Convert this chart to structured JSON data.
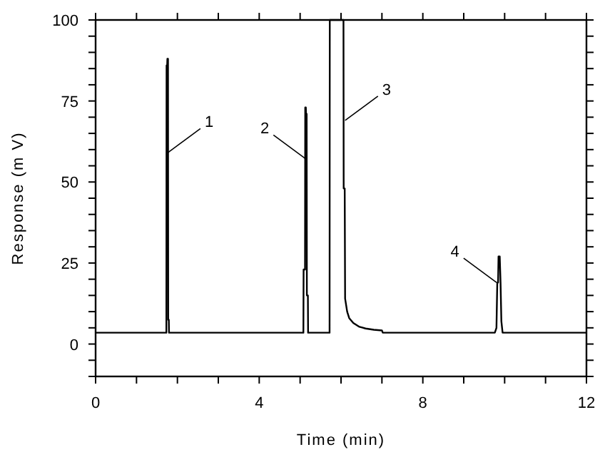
{
  "chart_data": {
    "type": "line",
    "xlabel": "Time (min)",
    "ylabel": "Response (m V)",
    "xlim": [
      0,
      12
    ],
    "ylim": [
      -10,
      100
    ],
    "xticks": [
      0,
      {
        "value": 1,
        "label": null
      },
      {
        "value": 2,
        "label": null
      },
      {
        "value": 3,
        "label": null
      },
      4,
      {
        "value": 5,
        "label": null
      },
      {
        "value": 6,
        "label": null
      },
      {
        "value": 7,
        "label": null
      },
      8,
      {
        "value": 9,
        "label": null
      },
      {
        "value": 10,
        "label": null
      },
      {
        "value": 11,
        "label": null
      },
      12
    ],
    "yticks": [
      {
        "value": -10,
        "label": null
      },
      {
        "value": -5,
        "label": null
      },
      0,
      {
        "value": 5,
        "label": null
      },
      {
        "value": 10,
        "label": null
      },
      {
        "value": 15,
        "label": null
      },
      {
        "value": 20,
        "label": null
      },
      25,
      {
        "value": 30,
        "label": null
      },
      {
        "value": 35,
        "label": null
      },
      {
        "value": 40,
        "label": null
      },
      {
        "value": 45,
        "label": null
      },
      50,
      {
        "value": 55,
        "label": null
      },
      {
        "value": 60,
        "label": null
      },
      {
        "value": 65,
        "label": null
      },
      {
        "value": 70,
        "label": null
      },
      75,
      {
        "value": 80,
        "label": null
      },
      {
        "value": 85,
        "label": null
      },
      {
        "value": 90,
        "label": null
      },
      {
        "value": 95,
        "label": null
      },
      100
    ],
    "grid": false,
    "series": [
      {
        "color": "#000000",
        "x": [
          0,
          1.73,
          1.735,
          1.75,
          1.755,
          1.77,
          1.775,
          1.79,
          1.795,
          5.08,
          5.085,
          5.12,
          5.125,
          5.14,
          5.145,
          5.16,
          5.165,
          5.19,
          5.195,
          5.72,
          5.725,
          6.06,
          6.065,
          6.09,
          6.1,
          6.15,
          6.2,
          6.3,
          6.45,
          6.6,
          6.8,
          7.0,
          7.02,
          9.76,
          9.8,
          9.82,
          9.84,
          9.85,
          9.88,
          9.9,
          9.92,
          9.95,
          12
        ],
        "values": [
          3.5,
          3.5,
          86,
          86,
          88,
          88,
          7.5,
          7.5,
          3.5,
          3.5,
          23,
          23,
          73,
          73,
          71,
          71,
          15,
          15,
          3.5,
          3.5,
          100,
          100,
          48,
          48,
          14,
          10,
          8,
          6.5,
          5.3,
          4.8,
          4.4,
          4.2,
          3.5,
          3.5,
          5,
          19,
          19,
          27,
          27,
          19,
          7,
          3.5,
          3.5
        ]
      }
    ],
    "annotations": [
      {
        "text": "1",
        "x": 1.76,
        "y": 59
      },
      {
        "text": "2",
        "x": 5.15,
        "y": 57
      },
      {
        "text": "3",
        "x": 6.1,
        "y": 69
      },
      {
        "text": "4",
        "x": 9.8,
        "y": 19
      }
    ]
  }
}
